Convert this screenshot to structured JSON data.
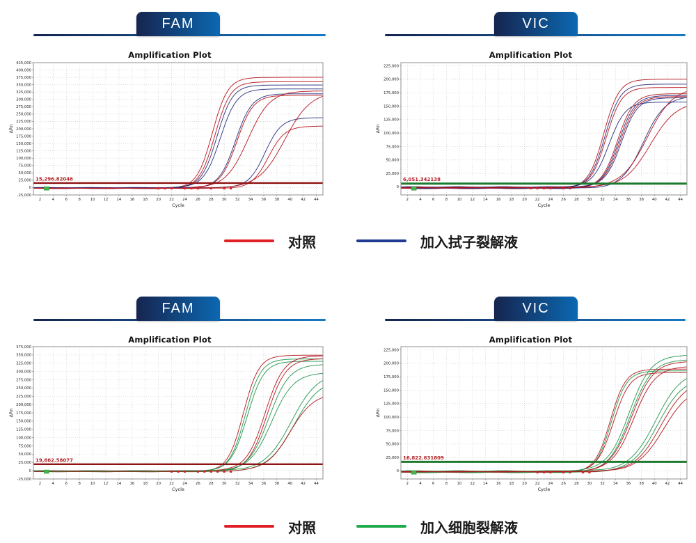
{
  "palette": {
    "tab_gradient_left": "#16254f",
    "tab_gradient_right": "#0b68b1",
    "underline_gradient_right": "#1779c4",
    "curve_red": "#b5121b",
    "curve_blue": "#232c7c",
    "curve_green": "#1f9347",
    "threshold_red_line": "#8f1313",
    "threshold_green_line": "#1b7a2e",
    "threshold_label_color": "#b42025",
    "grid_color": "#c9c9c9",
    "axis_border_color": "#8f8f8f"
  },
  "legends": [
    {
      "items": [
        {
          "label": "对照",
          "color": "#e01f26"
        },
        {
          "label": "加入拭子裂解液",
          "color": "#1f3a93"
        }
      ]
    },
    {
      "items": [
        {
          "label": "对照",
          "color": "#e01f26"
        },
        {
          "label": "加入细胞裂解液",
          "color": "#1faa4b"
        }
      ]
    }
  ],
  "chart_data": [
    {
      "type": "line",
      "tab": "FAM",
      "title": "Amplification Plot",
      "xlabel": "Cycle",
      "ylabel": "ΔRn",
      "x_min": 1,
      "x_max": 45,
      "x_ticks": [
        2,
        4,
        6,
        8,
        10,
        12,
        14,
        16,
        18,
        20,
        22,
        24,
        26,
        28,
        30,
        32,
        34,
        36,
        38,
        40,
        42,
        44
      ],
      "y_min": -25000,
      "y_max": 425000,
      "y_tick_min": -25000,
      "y_tick_max": 425000,
      "y_step": 25000,
      "grid": true,
      "threshold": {
        "value": 15296.82046,
        "label": "15,296.82046",
        "line_color": "#8f1313",
        "line_width": 2.4
      },
      "series": [
        {
          "color": "#b5121b",
          "ct": 28.2,
          "plateau": 378000,
          "k": 0.85
        },
        {
          "color": "#b5121b",
          "ct": 28.6,
          "plateau": 362000,
          "k": 0.85
        },
        {
          "color": "#232c7c",
          "ct": 28.9,
          "plateau": 350000,
          "k": 0.85
        },
        {
          "color": "#232c7c",
          "ct": 29.4,
          "plateau": 336000,
          "k": 0.8
        },
        {
          "color": "#232c7c",
          "ct": 31.7,
          "plateau": 322000,
          "k": 0.8
        },
        {
          "color": "#b5121b",
          "ct": 31.9,
          "plateau": 316000,
          "k": 0.8
        },
        {
          "color": "#b5121b",
          "ct": 33.6,
          "plateau": 330000,
          "k": 0.6
        },
        {
          "color": "#232c7c",
          "ct": 36.2,
          "plateau": 238000,
          "k": 0.8
        },
        {
          "color": "#b5121b",
          "ct": 36.7,
          "plateau": 212000,
          "k": 0.8
        },
        {
          "color": "#b5121b",
          "ct": 39.2,
          "plateau": 330000,
          "k": 0.5
        }
      ],
      "markers": {
        "green_square_cycle": 3,
        "red_square_cycles": [
          20,
          21,
          22,
          24,
          25,
          26,
          28,
          30,
          31
        ]
      }
    },
    {
      "type": "line",
      "tab": "VIC",
      "title": "Amplification Plot",
      "xlabel": "Cycle",
      "ylabel": "ΔRn",
      "x_min": 1,
      "x_max": 45,
      "x_ticks": [
        2,
        4,
        6,
        8,
        10,
        12,
        14,
        16,
        18,
        20,
        22,
        24,
        26,
        28,
        30,
        32,
        34,
        36,
        38,
        40,
        42,
        44
      ],
      "y_min": -15000,
      "y_max": 231000,
      "y_tick_min": 0,
      "y_tick_max": 225000,
      "y_step": 25000,
      "grid": true,
      "threshold": {
        "value": 6051.342138,
        "label": "6,051.342138",
        "line_color": "#1b7a2e",
        "line_width": 3
      },
      "series": [
        {
          "color": "#b5121b",
          "ct": 32.2,
          "plateau": 203000,
          "k": 0.85
        },
        {
          "color": "#232c7c",
          "ct": 32.4,
          "plateau": 193000,
          "k": 0.85
        },
        {
          "color": "#b5121b",
          "ct": 32.6,
          "plateau": 186000,
          "k": 0.85
        },
        {
          "color": "#232c7c",
          "ct": 33.0,
          "plateau": 158000,
          "k": 0.8
        },
        {
          "color": "#b5121b",
          "ct": 34.3,
          "plateau": 176000,
          "k": 0.8
        },
        {
          "color": "#232c7c",
          "ct": 34.5,
          "plateau": 172000,
          "k": 0.8
        },
        {
          "color": "#b5121b",
          "ct": 34.7,
          "plateau": 169000,
          "k": 0.8
        },
        {
          "color": "#232c7c",
          "ct": 34.9,
          "plateau": 166000,
          "k": 0.8
        },
        {
          "color": "#232c7c",
          "ct": 38.3,
          "plateau": 172000,
          "k": 0.6
        },
        {
          "color": "#b5121b",
          "ct": 38.9,
          "plateau": 188000,
          "k": 0.5
        },
        {
          "color": "#b5121b",
          "ct": 39.4,
          "plateau": 160000,
          "k": 0.5
        }
      ],
      "markers": {
        "green_square_cycle": 3,
        "red_square_cycles": [
          21,
          22,
          23,
          24,
          26,
          27
        ]
      }
    },
    {
      "type": "line",
      "tab": "FAM",
      "title": "Amplification Plot",
      "xlabel": "Cycle",
      "ylabel": "ΔRn",
      "x_min": 1,
      "x_max": 45,
      "x_ticks": [
        2,
        4,
        6,
        8,
        10,
        12,
        14,
        16,
        18,
        20,
        22,
        24,
        26,
        28,
        30,
        32,
        34,
        36,
        38,
        40,
        42,
        44
      ],
      "y_min": -25000,
      "y_max": 375000,
      "y_tick_min": -25000,
      "y_tick_max": 375000,
      "y_step": 25000,
      "grid": true,
      "threshold": {
        "value": 19662.58077,
        "label": "19,662.58077",
        "line_color": "#8f1313",
        "line_width": 2.4
      },
      "series": [
        {
          "color": "#b5121b",
          "ct": 32.9,
          "plateau": 352000,
          "k": 0.85
        },
        {
          "color": "#1f9347",
          "ct": 33.2,
          "plateau": 340000,
          "k": 0.85
        },
        {
          "color": "#1f9347",
          "ct": 33.5,
          "plateau": 332000,
          "k": 0.8
        },
        {
          "color": "#b5121b",
          "ct": 36.2,
          "plateau": 348000,
          "k": 0.7
        },
        {
          "color": "#b5121b",
          "ct": 36.5,
          "plateau": 342000,
          "k": 0.7
        },
        {
          "color": "#1f9347",
          "ct": 36.8,
          "plateau": 324000,
          "k": 0.65
        },
        {
          "color": "#1f9347",
          "ct": 37.2,
          "plateau": 298000,
          "k": 0.6
        },
        {
          "color": "#1f9347",
          "ct": 40.2,
          "plateau": 298000,
          "k": 0.5
        },
        {
          "color": "#1f9347",
          "ct": 40.6,
          "plateau": 282000,
          "k": 0.5
        },
        {
          "color": "#b5121b",
          "ct": 40.0,
          "plateau": 238000,
          "k": 0.55
        }
      ],
      "markers": {
        "green_square_cycle": 3,
        "red_square_cycles": [
          22,
          23,
          24,
          26,
          27,
          28,
          29,
          30,
          31
        ]
      }
    },
    {
      "type": "line",
      "tab": "VIC",
      "title": "Amplification Plot",
      "xlabel": "Cycle",
      "ylabel": "ΔRn",
      "x_min": 1,
      "x_max": 45,
      "x_ticks": [
        2,
        4,
        6,
        8,
        10,
        12,
        14,
        16,
        18,
        20,
        22,
        24,
        26,
        28,
        30,
        32,
        34,
        36,
        38,
        40,
        42,
        44
      ],
      "y_min": -15000,
      "y_max": 231000,
      "y_tick_min": 0,
      "y_tick_max": 225000,
      "y_step": 25000,
      "grid": true,
      "threshold": {
        "value": 16822.631809,
        "label": "16,822.631809",
        "line_color": "#1b7a2e",
        "line_width": 3
      },
      "series": [
        {
          "color": "#b5121b",
          "ct": 33.2,
          "plateau": 192000,
          "k": 0.85
        },
        {
          "color": "#1f9347",
          "ct": 33.4,
          "plateau": 188000,
          "k": 0.85
        },
        {
          "color": "#b5121b",
          "ct": 33.7,
          "plateau": 184000,
          "k": 0.8
        },
        {
          "color": "#1f9347",
          "ct": 36.1,
          "plateau": 216000,
          "k": 0.6
        },
        {
          "color": "#1f9347",
          "ct": 36.3,
          "plateau": 210000,
          "k": 0.6
        },
        {
          "color": "#b5121b",
          "ct": 36.5,
          "plateau": 206000,
          "k": 0.6
        },
        {
          "color": "#b5121b",
          "ct": 36.8,
          "plateau": 196000,
          "k": 0.6
        },
        {
          "color": "#1f9347",
          "ct": 40.2,
          "plateau": 188000,
          "k": 0.5
        },
        {
          "color": "#1f9347",
          "ct": 40.5,
          "plateau": 178000,
          "k": 0.5
        },
        {
          "color": "#b5121b",
          "ct": 41.0,
          "plateau": 172000,
          "k": 0.5
        },
        {
          "color": "#b5121b",
          "ct": 41.4,
          "plateau": 158000,
          "k": 0.5
        }
      ],
      "markers": {
        "green_square_cycle": 3,
        "red_square_cycles": [
          22,
          23,
          24,
          26,
          27,
          29,
          30
        ]
      }
    }
  ]
}
